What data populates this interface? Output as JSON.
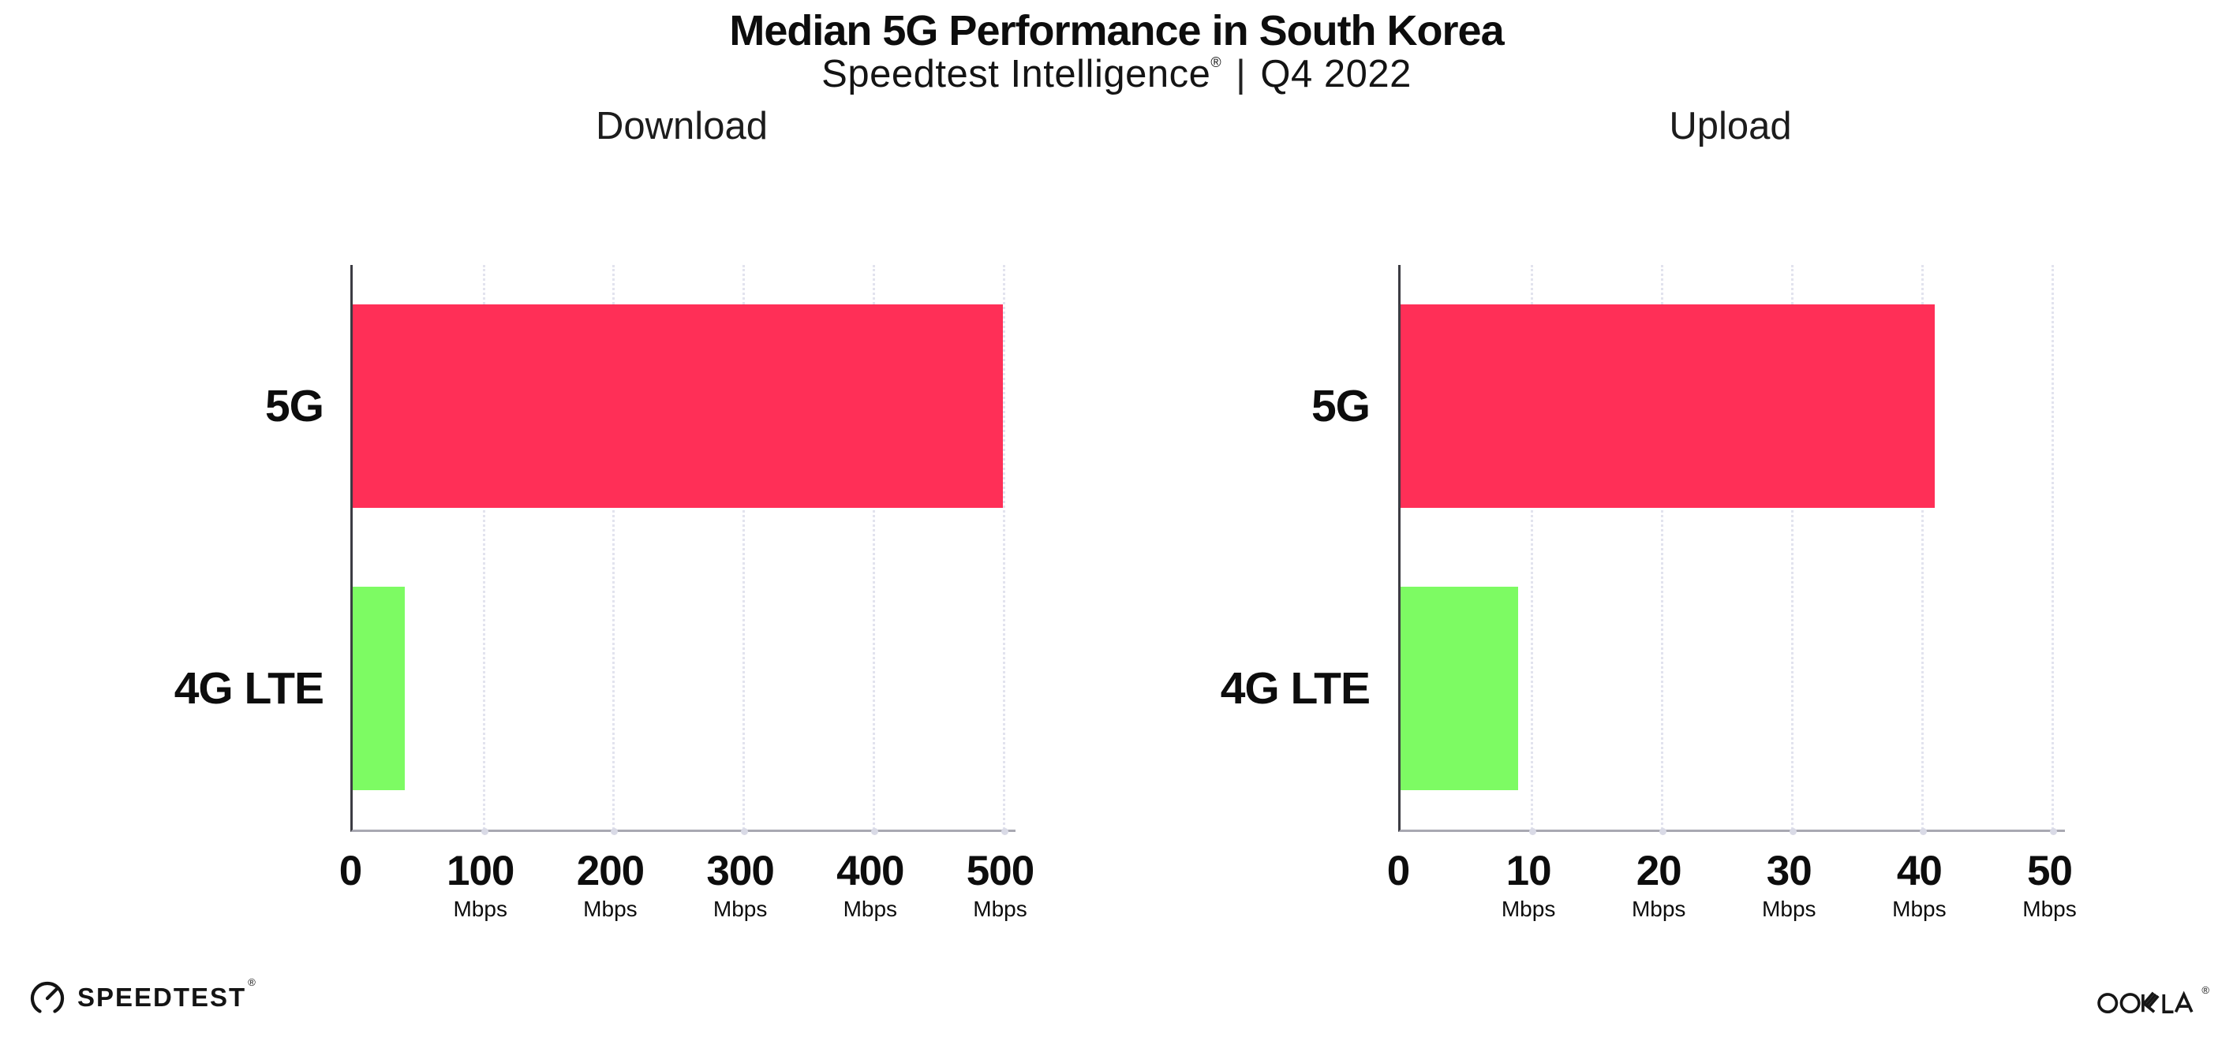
{
  "title": "Median 5G Performance in South Korea",
  "subtitle": {
    "product": "Speedtest Intelligence",
    "reg_mark": "®",
    "separator": "|",
    "period": "Q4 2022"
  },
  "footer": {
    "speedtest_wordmark": "SPEEDTEST",
    "speedtest_reg": "®",
    "ookla_wordmark": "OOKLA",
    "ookla_reg": "®"
  },
  "colors": {
    "bar_5g": "#ff2f57",
    "bar_4g_lte": "#7dfb63",
    "y_axis": "#3c3c43",
    "x_axis": "#a9a9b2",
    "gridline": "#e2e3ee",
    "text": "#0d0d0d"
  },
  "chart_data": {
    "type": "bar",
    "orientation": "horizontal",
    "grid": "dotted-vertical",
    "legend": "none",
    "unit": "Mbps",
    "categories": [
      "5G",
      "4G LTE"
    ],
    "bar_colors": [
      "#ff2f57",
      "#7dfb63"
    ],
    "charts": [
      {
        "title": "Download",
        "values": [
          500,
          40
        ],
        "xlim": [
          0,
          510
        ],
        "ticks": [
          {
            "value": 0,
            "label": "0",
            "sublabel": ""
          },
          {
            "value": 100,
            "label": "100",
            "sublabel": "Mbps"
          },
          {
            "value": 200,
            "label": "200",
            "sublabel": "Mbps"
          },
          {
            "value": 300,
            "label": "300",
            "sublabel": "Mbps"
          },
          {
            "value": 400,
            "label": "400",
            "sublabel": "Mbps"
          },
          {
            "value": 500,
            "label": "500",
            "sublabel": "Mbps"
          }
        ]
      },
      {
        "title": "Upload",
        "values": [
          41,
          9
        ],
        "xlim": [
          0,
          51
        ],
        "ticks": [
          {
            "value": 0,
            "label": "0",
            "sublabel": ""
          },
          {
            "value": 10,
            "label": "10",
            "sublabel": "Mbps"
          },
          {
            "value": 20,
            "label": "20",
            "sublabel": "Mbps"
          },
          {
            "value": 30,
            "label": "30",
            "sublabel": "Mbps"
          },
          {
            "value": 40,
            "label": "40",
            "sublabel": "Mbps"
          },
          {
            "value": 50,
            "label": "50",
            "sublabel": "Mbps"
          }
        ]
      }
    ]
  }
}
